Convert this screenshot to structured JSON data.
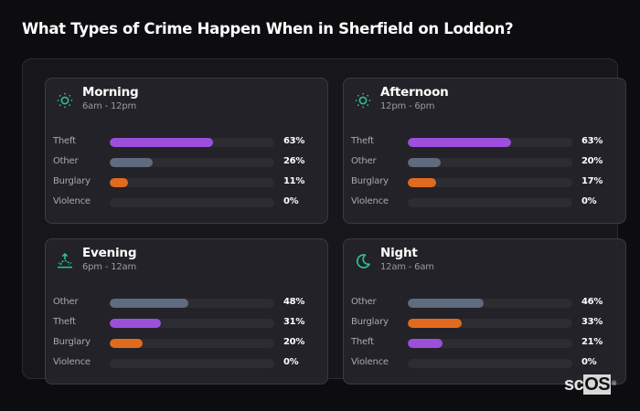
{
  "page": {
    "title": "What Types of Crime Happen When in Sherfield on Loddon?"
  },
  "colors": {
    "background": "#0d0d10",
    "accent_icon": "#2fbf8f",
    "theft": "#9b4fdb",
    "other": "#5f6b7e",
    "burglary": "#e06a1e",
    "violence": "#c0392b",
    "track": "#2c2c31"
  },
  "cards": [
    {
      "id": "morning",
      "icon": "sun-icon",
      "title": "Morning",
      "subtitle": "6am - 12pm",
      "rows": [
        {
          "label": "Theft",
          "value": 63,
          "pct": "63%",
          "color": "#9b4fdb"
        },
        {
          "label": "Other",
          "value": 26,
          "pct": "26%",
          "color": "#5f6b7e"
        },
        {
          "label": "Burglary",
          "value": 11,
          "pct": "11%",
          "color": "#e06a1e"
        },
        {
          "label": "Violence",
          "value": 0,
          "pct": "0%",
          "color": "#c0392b"
        }
      ]
    },
    {
      "id": "afternoon",
      "icon": "sun-icon",
      "title": "Afternoon",
      "subtitle": "12pm - 6pm",
      "rows": [
        {
          "label": "Theft",
          "value": 63,
          "pct": "63%",
          "color": "#9b4fdb"
        },
        {
          "label": "Other",
          "value": 20,
          "pct": "20%",
          "color": "#5f6b7e"
        },
        {
          "label": "Burglary",
          "value": 17,
          "pct": "17%",
          "color": "#e06a1e"
        },
        {
          "label": "Violence",
          "value": 0,
          "pct": "0%",
          "color": "#c0392b"
        }
      ]
    },
    {
      "id": "evening",
      "icon": "sunset-icon",
      "title": "Evening",
      "subtitle": "6pm - 12am",
      "rows": [
        {
          "label": "Other",
          "value": 48,
          "pct": "48%",
          "color": "#5f6b7e"
        },
        {
          "label": "Theft",
          "value": 31,
          "pct": "31%",
          "color": "#9b4fdb"
        },
        {
          "label": "Burglary",
          "value": 20,
          "pct": "20%",
          "color": "#e06a1e"
        },
        {
          "label": "Violence",
          "value": 0,
          "pct": "0%",
          "color": "#c0392b"
        }
      ]
    },
    {
      "id": "night",
      "icon": "moon-icon",
      "title": "Night",
      "subtitle": "12am - 6am",
      "rows": [
        {
          "label": "Other",
          "value": 46,
          "pct": "46%",
          "color": "#5f6b7e"
        },
        {
          "label": "Burglary",
          "value": 33,
          "pct": "33%",
          "color": "#e06a1e"
        },
        {
          "label": "Theft",
          "value": 21,
          "pct": "21%",
          "color": "#9b4fdb"
        },
        {
          "label": "Violence",
          "value": 0,
          "pct": "0%",
          "color": "#c0392b"
        }
      ]
    }
  ],
  "watermark": {
    "prefix": "sc",
    "highlight": "OS",
    "reg": "®"
  }
}
